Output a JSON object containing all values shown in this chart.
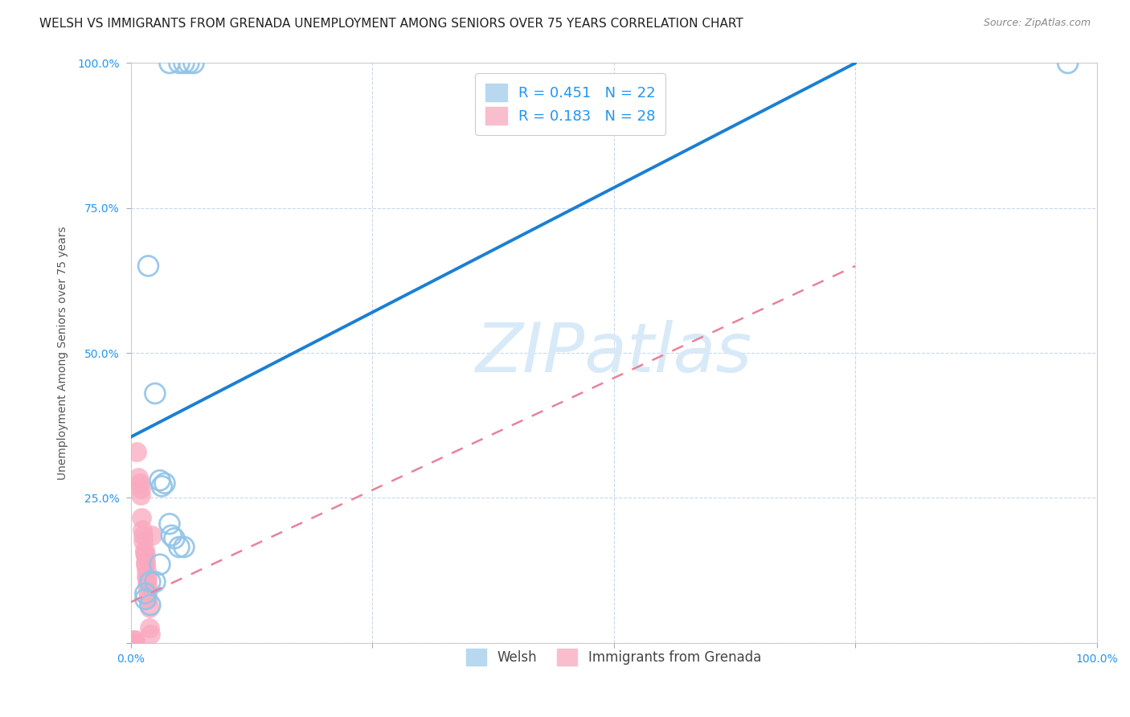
{
  "title": "WELSH VS IMMIGRANTS FROM GRENADA UNEMPLOYMENT AMONG SENIORS OVER 75 YEARS CORRELATION CHART",
  "source": "Source: ZipAtlas.com",
  "ylabel": "Unemployment Among Seniors over 75 years",
  "xlim": [
    0.0,
    1.0
  ],
  "ylim": [
    0.0,
    1.0
  ],
  "xticks": [
    0.0,
    0.25,
    0.5,
    0.75,
    1.0
  ],
  "yticks": [
    0.0,
    0.25,
    0.5,
    0.75,
    1.0
  ],
  "xtick_labels": [
    "0.0%",
    "",
    "",
    "",
    "100.0%"
  ],
  "ytick_labels": [
    "",
    "25.0%",
    "50.0%",
    "75.0%",
    "100.0%"
  ],
  "welsh_marker_color": "#90c4e8",
  "grenada_marker_color": "#f9a8c0",
  "welsh_line_color": "#1a7fd4",
  "grenada_line_color": "#e8829a",
  "welsh_R": 0.451,
  "welsh_N": 22,
  "grenada_R": 0.183,
  "grenada_N": 28,
  "background_color": "#ffffff",
  "grid_color": "#c8d8ec",
  "watermark_text": "ZIPatlas",
  "watermark_color": "#d8eaf8",
  "welsh_scatter_x": [
    0.04,
    0.05,
    0.055,
    0.06,
    0.065,
    0.018,
    0.025,
    0.03,
    0.032,
    0.035,
    0.04,
    0.042,
    0.045,
    0.05,
    0.055,
    0.02,
    0.025,
    0.015,
    0.015,
    0.02,
    0.03,
    0.97
  ],
  "welsh_scatter_y": [
    1.0,
    1.0,
    1.0,
    1.0,
    1.0,
    0.65,
    0.43,
    0.28,
    0.27,
    0.275,
    0.205,
    0.185,
    0.18,
    0.165,
    0.165,
    0.105,
    0.105,
    0.085,
    0.075,
    0.065,
    0.135,
    1.0
  ],
  "grenada_scatter_x": [
    0.006,
    0.008,
    0.009,
    0.01,
    0.01,
    0.011,
    0.012,
    0.013,
    0.013,
    0.014,
    0.014,
    0.015,
    0.015,
    0.015,
    0.016,
    0.016,
    0.017,
    0.017,
    0.018,
    0.018,
    0.019,
    0.019,
    0.02,
    0.022,
    0.003,
    0.003,
    0.004,
    0.004
  ],
  "grenada_scatter_y": [
    0.33,
    0.285,
    0.275,
    0.265,
    0.255,
    0.215,
    0.195,
    0.185,
    0.175,
    0.16,
    0.155,
    0.15,
    0.14,
    0.135,
    0.125,
    0.115,
    0.11,
    0.1,
    0.09,
    0.075,
    0.06,
    0.025,
    0.015,
    0.185,
    0.005,
    0.0,
    0.005,
    0.0
  ],
  "welsh_line_x0": 0.0,
  "welsh_line_y0": 0.355,
  "welsh_line_x1": 0.75,
  "welsh_line_y1": 1.0,
  "grenada_line_x0": 0.0,
  "grenada_line_y0": 0.07,
  "grenada_line_x1": 0.75,
  "grenada_line_y1": 0.65,
  "title_fontsize": 11,
  "axis_label_fontsize": 10,
  "tick_fontsize": 10,
  "legend_fontsize": 13,
  "source_fontsize": 9
}
